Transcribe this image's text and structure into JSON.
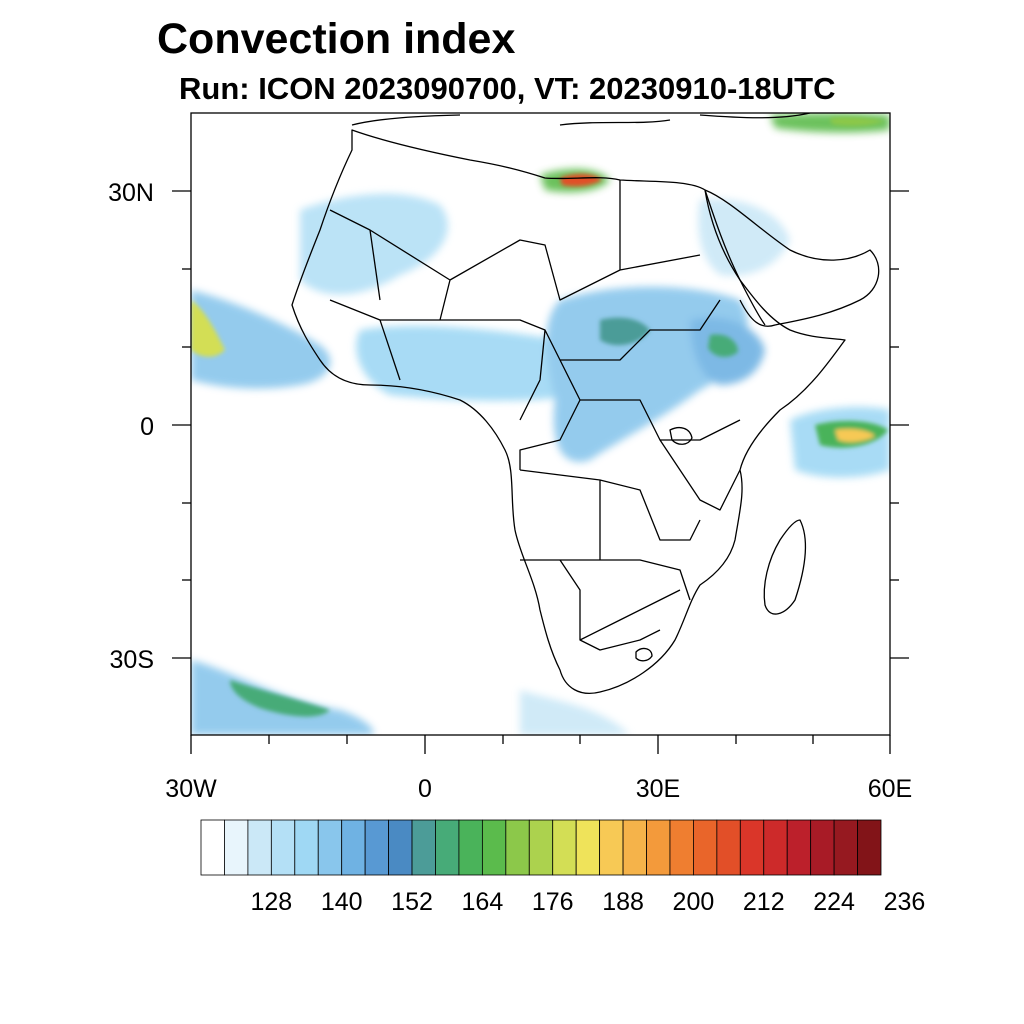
{
  "map": {
    "title": "Convection index",
    "subtitle": "Run: ICON 2023090700,  VT: 20230910-18UTC",
    "lat_labels": [
      "30N",
      "0",
      "30S"
    ],
    "lon_labels": [
      "30W",
      "0",
      "30E",
      "60E"
    ],
    "lat_values": [
      30,
      0,
      -30
    ],
    "lon_values": [
      -30,
      0,
      30,
      60
    ],
    "extent": {
      "lon_min": -30,
      "lon_max": 60,
      "lat_min": -40,
      "lat_max": 40
    },
    "colorbar": {
      "labels": [
        "128",
        "140",
        "152",
        "164",
        "176",
        "188",
        "200",
        "212",
        "224",
        "236"
      ],
      "colors": [
        "#ffffff",
        "#e8f5fc",
        "#cbe8f7",
        "#b4e0f6",
        "#9fd8f4",
        "#89c6ec",
        "#6fb2e3",
        "#5899d3",
        "#4a8ac3",
        "#4c9c98",
        "#47ab78",
        "#4ab35a",
        "#5bbb4c",
        "#8cc84a",
        "#acd24e",
        "#d3de55",
        "#efe35a",
        "#f7c955",
        "#f5b34a",
        "#f39a3b",
        "#ef7e30",
        "#e9652a",
        "#e24f28",
        "#da3629",
        "#cd2a2a",
        "#bc202b",
        "#a81b26",
        "#961920",
        "#821418"
      ]
    }
  }
}
